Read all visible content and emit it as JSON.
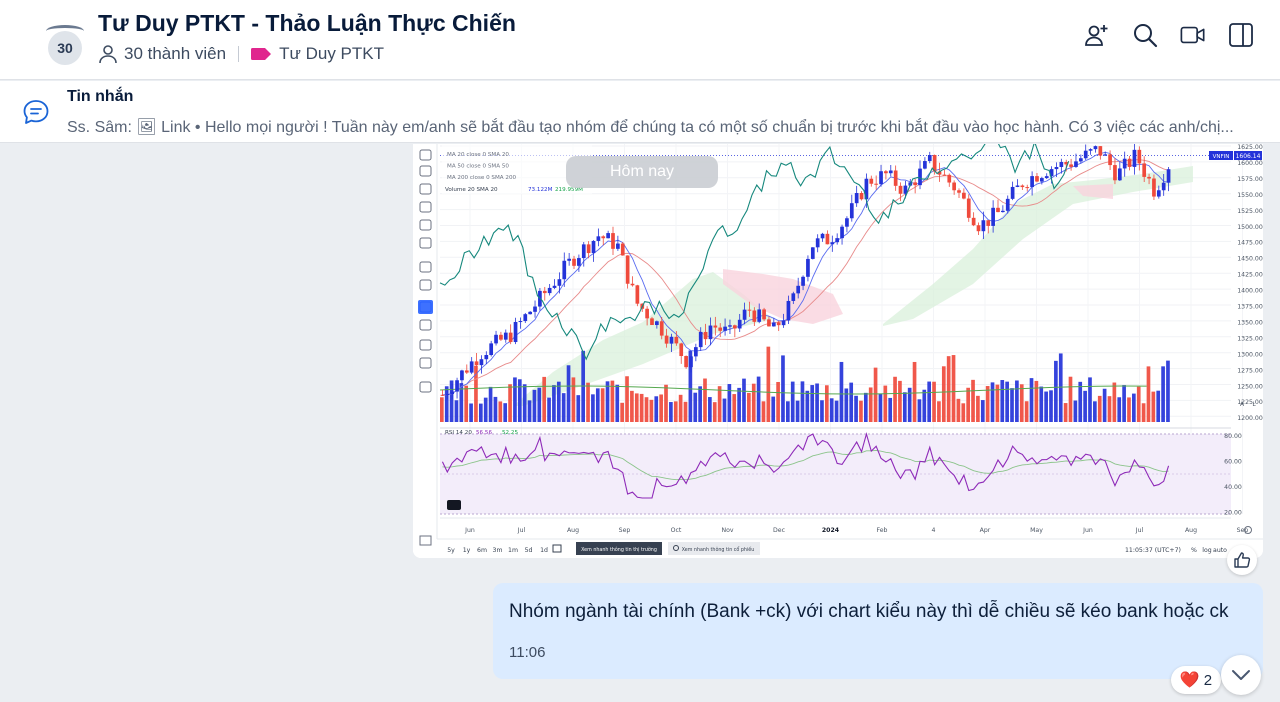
{
  "header": {
    "group_avatar_count": "30",
    "title": "Tư Duy PTKT - Thảo Luận Thực Chiến",
    "members": "30 thành viên",
    "tag": "Tư Duy PTKT",
    "tag_color": "#e0268e",
    "actions": [
      "add-member-icon",
      "search-icon",
      "video-call-icon",
      "sidebar-toggle-icon"
    ]
  },
  "pinned": {
    "title": "Tin nhắn",
    "text": "Ss. Sâm: 🖼 Link • Hello mọi người ! Tuần này em/anh sẽ bắt đầu tạo nhóm để chúng ta có một số chuẩn bị trước khi bắt đầu vào học hành. Có 3 việc các anh/chị..."
  },
  "date_divider": "Hôm nay",
  "chart_image": {
    "indicators": [
      "MA 20 close 0 SMA 20",
      "MA 50 close 0 SMA 50",
      "MA 200 close 0 SMA 200"
    ],
    "volume_label": "Volume 20 SMA 20",
    "volume_val1": "73.122M",
    "volume_val2": "219.959M",
    "rsi_label": "RSI 14 20",
    "rsi_val1": "56.56",
    "rsi_val2": "52.25",
    "symbol_tag": "VNFIN",
    "last_price": "1606.14",
    "price_ticks": [
      "1625.00",
      "1600.00",
      "1575.00",
      "1550.00",
      "1525.00",
      "1500.00",
      "1475.00",
      "1450.00",
      "1425.00",
      "1400.00",
      "1375.00",
      "1350.00",
      "1325.00",
      "1300.00",
      "1275.00",
      "1250.00",
      "1225.00",
      "1200.00"
    ],
    "rsi_ticks": [
      "80.00",
      "60.00",
      "40.00",
      "20.00"
    ],
    "months": [
      "Jun",
      "Jul",
      "Aug",
      "Sep",
      "Oct",
      "Nov",
      "Dec",
      "2024",
      "Feb",
      "4",
      "Apr",
      "May",
      "Jun",
      "Jul",
      "Aug",
      "Sep"
    ],
    "periods": [
      "5y",
      "1y",
      "6m",
      "3m",
      "1m",
      "5d",
      "1d"
    ],
    "bottom_btn1": "Xem nhanh thông tin thị trường",
    "bottom_btn2": "Xem nhanh thông tin cổ phiếu",
    "clock": "11:05:37 (UTC+7)",
    "scale_opts": [
      "%",
      "log",
      "auto"
    ],
    "side_letters": [
      "A",
      "L"
    ],
    "up_color": "#2433d9",
    "down_color": "#ef4a3c",
    "ichimoku_up": "#d7f0d8",
    "ichimoku_down": "#f9d3dd",
    "rsi_color": "#8e2ab8",
    "teal_color": "#16887d"
  },
  "message": {
    "text": "Nhóm ngành tài chính (Bank +ck) với chart kiểu này thì dễ chiều sẽ kéo bank hoặc ck",
    "time": "11:06",
    "reaction_emoji": "❤️",
    "reaction_count": "2"
  }
}
